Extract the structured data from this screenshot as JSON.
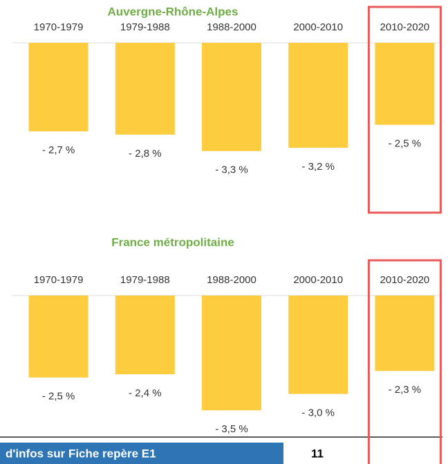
{
  "chart_data": [
    {
      "type": "bar",
      "title": "Auvergne-Rhône-Alpes",
      "categories": [
        "1970-1979",
        "1979-1988",
        "1988-2000",
        "2000-2010",
        "2010-2020"
      ],
      "values": [
        -2.7,
        -2.8,
        -3.3,
        -3.2,
        -2.5
      ],
      "value_labels": [
        "- 2,7 %",
        "- 2,8 %",
        "- 3,3 %",
        "- 3,2 %",
        "- 2,5 %"
      ],
      "color": "#fdcc3f",
      "ylim": [
        -5,
        0
      ],
      "highlight_index": 4,
      "highlight_color": "#e85a5a"
    },
    {
      "type": "bar",
      "title": "France métropolitaine",
      "categories": [
        "1970-1979",
        "1979-1988",
        "1988-2000",
        "2000-2010",
        "2010-2020"
      ],
      "values": [
        -2.5,
        -2.4,
        -3.5,
        -3.0,
        -2.3
      ],
      "value_labels": [
        "- 2,5 %",
        "- 2,4 %",
        "- 3,5 %",
        "- 3,0 %",
        "- 2,3 %"
      ],
      "color": "#fdcc3f",
      "ylim": [
        -5,
        0
      ],
      "highlight_index": 4,
      "highlight_color": "#e85a5a"
    }
  ],
  "footer": {
    "text": "d'infos sur Fiche repère E1",
    "page": "11"
  }
}
